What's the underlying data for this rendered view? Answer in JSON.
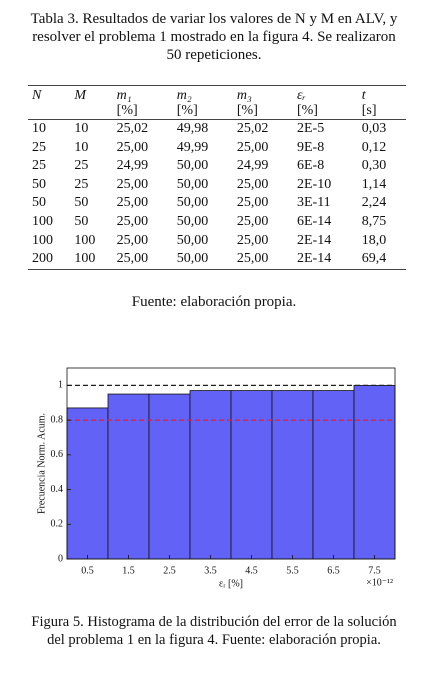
{
  "table_caption": "Tabla 3. Resultados de variar los valores de N y M en ALV, y resolver el problema 1 mostrado en la figura 4. Se realizaron 50 repeticiones.",
  "table": {
    "header": [
      {
        "symbol": "N"
      },
      {
        "symbol": "M"
      },
      {
        "symbol": "m₁",
        "unit": "[%]"
      },
      {
        "symbol": "m₂",
        "unit": "[%]"
      },
      {
        "symbol": "m₃",
        "unit": "[%]"
      },
      {
        "symbol": "εᵣ",
        "unit": "[%]"
      },
      {
        "symbol": "t",
        "unit": "[s]"
      }
    ],
    "rows": [
      [
        "10",
        "10",
        "25,02",
        "49,98",
        "25,02",
        "2E-5",
        "0,03"
      ],
      [
        "25",
        "10",
        "25,00",
        "49,99",
        "25,00",
        "9E-8",
        "0,12"
      ],
      [
        "25",
        "25",
        "24,99",
        "50,00",
        "24,99",
        "6E-8",
        "0,30"
      ],
      [
        "50",
        "25",
        "25,00",
        "50,00",
        "25,00",
        "2E-10",
        "1,14"
      ],
      [
        "50",
        "50",
        "25,00",
        "50,00",
        "25,00",
        "3E-11",
        "2,24"
      ],
      [
        "100",
        "50",
        "25,00",
        "50,00",
        "25,00",
        "6E-14",
        "8,75"
      ],
      [
        "100",
        "100",
        "25,00",
        "50,00",
        "25,00",
        "2E-14",
        "18,0"
      ],
      [
        "200",
        "100",
        "25,00",
        "50,00",
        "25,00",
        "2E-14",
        "69,4"
      ]
    ]
  },
  "table_source": "Fuente: elaboración propia.",
  "chart_data": {
    "type": "histogram",
    "bins": [
      0,
      1,
      2,
      3,
      4,
      5,
      6,
      7,
      8
    ],
    "counts": [
      0.87,
      0.95,
      0.95,
      0.97,
      0.97,
      0.97,
      0.97,
      1
    ],
    "color": "#6262f6",
    "xlim": [
      0,
      8
    ],
    "xticks": [
      0.5,
      1.5,
      2.5,
      3.5,
      4.5,
      5.5,
      6.5,
      7.5
    ],
    "ylim": [
      0,
      1.1
    ],
    "yticks": [
      0,
      0.2,
      0.4,
      0.6,
      0.8,
      1
    ],
    "x_label": "εᵣ [%]",
    "x_offset_label": "×10⁻¹²",
    "y_label": "Frecuencia Norm. Acum.",
    "hlines": [
      {
        "value": 1,
        "color": "#222222"
      },
      {
        "value": 0.8,
        "color": "#e8202a"
      }
    ]
  },
  "figure_caption": "Figura 5. Histograma de la distribución del error de la solución del problema 1 en la figura 4. Fuente: elaboración propia."
}
